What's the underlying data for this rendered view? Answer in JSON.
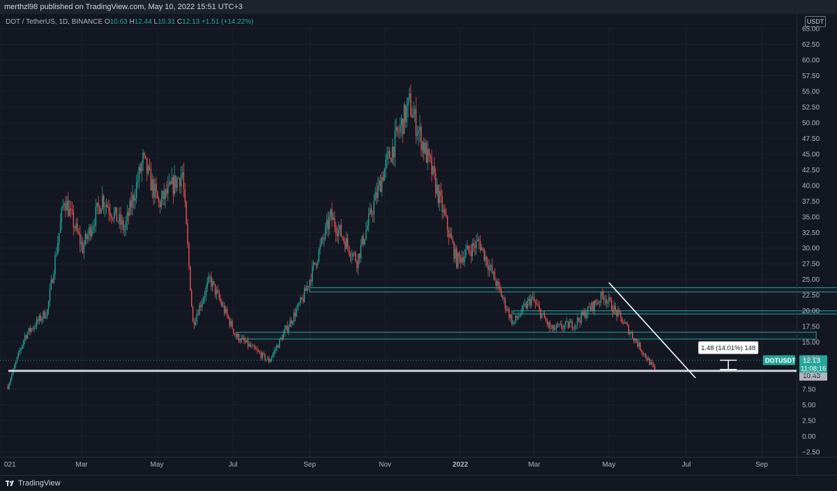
{
  "header": {
    "published": "merthzl98 published on TradingView.com, May 10, 2022 15:51 UTC+3"
  },
  "legend": {
    "symbol": "DOT / TetherUS, 1D, BINANCE",
    "o_label": "O",
    "o": "10.63",
    "h_label": "H",
    "h": "12.44",
    "l_label": "L",
    "l": "10.31",
    "c_label": "C",
    "c": "12.13",
    "change": "+1.51 (+14.22%)"
  },
  "currency": "USDT",
  "footer": {
    "brand": "TradingView"
  },
  "colors": {
    "up": "#26a69a",
    "down": "#ef5350",
    "background": "#131722",
    "support": "#d1d4dc",
    "zone": "#26a69a",
    "trendline": "#ffffff"
  },
  "chart_data": {
    "type": "candlestick",
    "symbol": "DOTUSDT",
    "interval": "1D",
    "ylim": [
      -2.5,
      65
    ],
    "y_ticks": [
      "65.00",
      "62.50",
      "60.00",
      "57.50",
      "55.00",
      "52.50",
      "50.00",
      "47.50",
      "45.00",
      "42.50",
      "40.00",
      "37.50",
      "35.00",
      "32.50",
      "30.00",
      "27.50",
      "25.00",
      "22.50",
      "20.00",
      "17.50",
      "15.00",
      "12.50",
      "10.00",
      "7.50",
      "5.00",
      "2.50",
      "0.00",
      "−2.50"
    ],
    "x_ticks": [
      "021",
      "Mar",
      "May",
      "Jul",
      "Sep",
      "Nov",
      "2022",
      "Mar",
      "May",
      "Jul",
      "Sep"
    ],
    "price_path": [
      {
        "date": "2021-01-02",
        "price": 8.0
      },
      {
        "date": "2021-01-15",
        "price": 16.0
      },
      {
        "date": "2021-02-01",
        "price": 20.0
      },
      {
        "date": "2021-02-14",
        "price": 38.0
      },
      {
        "date": "2021-02-28",
        "price": 30.0
      },
      {
        "date": "2021-03-15",
        "price": 38.0
      },
      {
        "date": "2021-04-01",
        "price": 33.0
      },
      {
        "date": "2021-04-15",
        "price": 44.0
      },
      {
        "date": "2021-04-27",
        "price": 37.0
      },
      {
        "date": "2021-05-15",
        "price": 42.0
      },
      {
        "date": "2021-05-23",
        "price": 18.0
      },
      {
        "date": "2021-06-05",
        "price": 25.0
      },
      {
        "date": "2021-06-25",
        "price": 16.0
      },
      {
        "date": "2021-07-20",
        "price": 12.0
      },
      {
        "date": "2021-08-15",
        "price": 22.0
      },
      {
        "date": "2021-09-05",
        "price": 35.0
      },
      {
        "date": "2021-09-25",
        "price": 28.0
      },
      {
        "date": "2021-10-15",
        "price": 42.0
      },
      {
        "date": "2021-11-04",
        "price": 53.0
      },
      {
        "date": "2021-11-20",
        "price": 43.0
      },
      {
        "date": "2021-12-10",
        "price": 28.0
      },
      {
        "date": "2021-12-27",
        "price": 31.0
      },
      {
        "date": "2022-01-10",
        "price": 24.0
      },
      {
        "date": "2022-01-22",
        "price": 18.0
      },
      {
        "date": "2022-02-05",
        "price": 22.0
      },
      {
        "date": "2022-02-20",
        "price": 17.0
      },
      {
        "date": "2022-03-10",
        "price": 18.0
      },
      {
        "date": "2022-04-01",
        "price": 22.5
      },
      {
        "date": "2022-04-20",
        "price": 17.0
      },
      {
        "date": "2022-05-10",
        "price": 10.5
      }
    ],
    "horizontal_levels": [
      {
        "price": 10.43,
        "label": "10.43"
      }
    ],
    "zones": [
      {
        "from": "2021-08-20",
        "to": "2022-09-30",
        "low": 23.0,
        "high": 23.7
      },
      {
        "from": "2022-01-22",
        "to": "2022-09-30",
        "low": 19.5,
        "high": 20.0
      },
      {
        "from": "2021-06-25",
        "to": "2022-09-10",
        "low": 15.5,
        "high": 16.6
      }
    ],
    "trendline": {
      "from": {
        "date": "2022-04-05",
        "price": 24.5
      },
      "to": {
        "date": "2022-06-10",
        "price": 9.3
      }
    },
    "measure": {
      "label": "1.48 (14.01%) 148",
      "from_price": 10.65,
      "to_price": 12.13,
      "date": "2022-07-05"
    },
    "last_price": {
      "symbol": "DOTUSDT",
      "price": "12.13",
      "countdown": "11:08:16"
    }
  }
}
